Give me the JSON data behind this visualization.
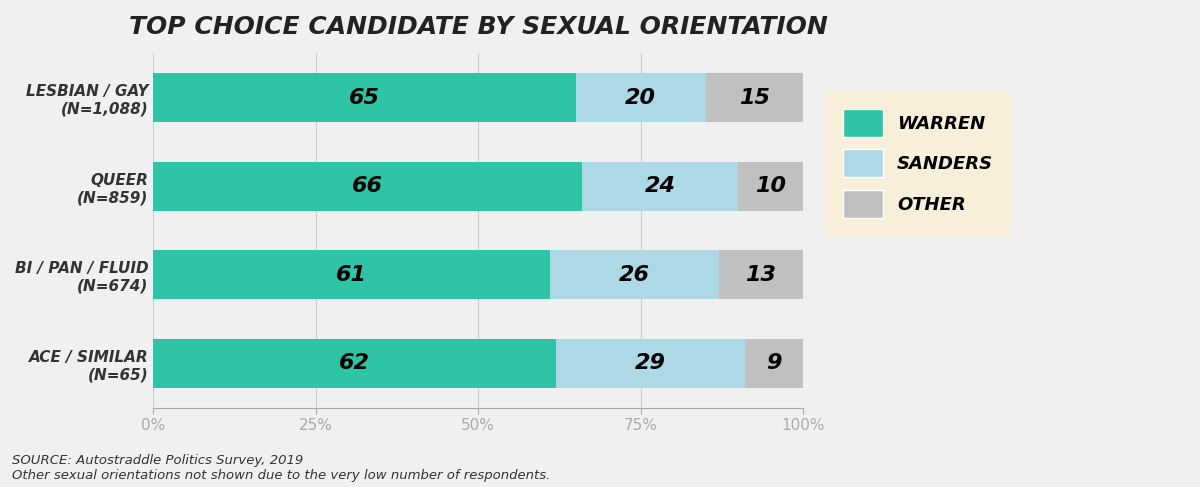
{
  "title": "TOP CHOICE CANDIDATE BY SEXUAL ORIENTATION",
  "categories": [
    "LESBIAN / GAY\n(N=1,088)",
    "QUEER\n(N=859)",
    "BI / PAN / FLUID\n(N=674)",
    "ACE / SIMILAR\n(N=65)"
  ],
  "warren": [
    65,
    66,
    61,
    62
  ],
  "sanders": [
    20,
    24,
    26,
    29
  ],
  "other": [
    15,
    10,
    13,
    9
  ],
  "warren_color": "#2ec4a5",
  "sanders_color": "#add8e6",
  "other_color": "#c0c0c0",
  "legend_bg": "#faefd4",
  "legend_labels": [
    "WARREN",
    "SANDERS",
    "OTHER"
  ],
  "background_color": "#f0f0f0",
  "source_line1": "SOURCE: Autostraddle Politics Survey, 2019",
  "source_line2": "Other sexual orientations not shown due to the very low number of respondents.",
  "xlabel_ticks": [
    "0%",
    "25%",
    "50%",
    "75%",
    "100%"
  ],
  "xlabel_vals": [
    0,
    25,
    50,
    75,
    100
  ]
}
